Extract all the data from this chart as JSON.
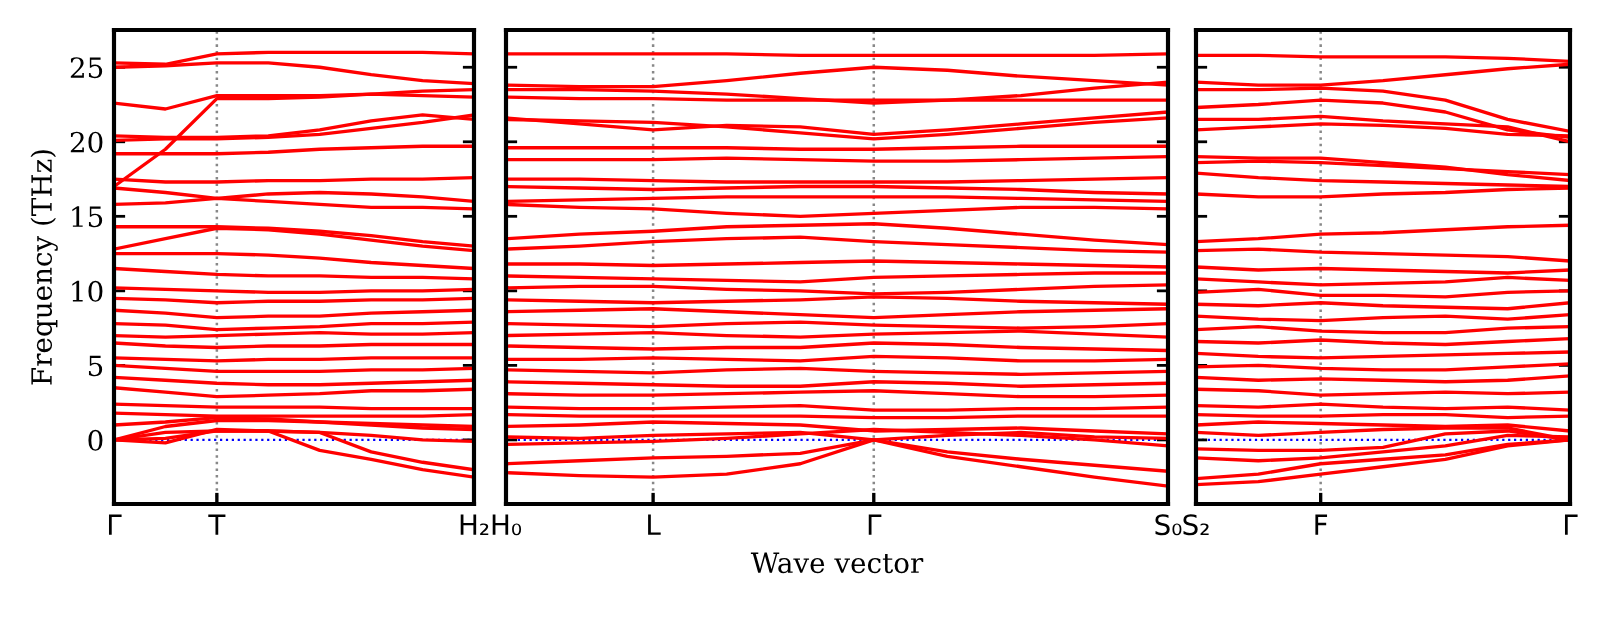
{
  "chart_data": [
    {
      "type": "line",
      "ylabel": "Frequency (THz)",
      "categories": [
        "Γ",
        null,
        "T",
        null,
        null,
        null,
        null,
        "H₂"
      ],
      "ylim": [
        -4.3,
        27.5
      ],
      "yticks": [
        0,
        5,
        10,
        15,
        20,
        25
      ],
      "ref_lines": [
        {
          "axis": "y",
          "value": 0,
          "color": "#0000ff",
          "line_style": "dotted"
        },
        {
          "axis": "x",
          "value": "T",
          "color": "#888888",
          "line_style": "dotted"
        }
      ],
      "series": [
        {
          "color": "#ff0000",
          "values": [
            25.3,
            25.2,
            25.9,
            26.0,
            26.0,
            26.0,
            26.0,
            25.9
          ]
        },
        {
          "color": "#ff0000",
          "values": [
            25.0,
            25.1,
            25.3,
            25.3,
            25.0,
            24.5,
            24.1,
            23.9
          ]
        },
        {
          "color": "#ff0000",
          "values": [
            22.6,
            22.2,
            23.1,
            23.1,
            23.1,
            23.2,
            23.1,
            23.0
          ]
        },
        {
          "color": "#ff0000",
          "values": [
            17.0,
            19.5,
            22.9,
            22.9,
            23.0,
            23.2,
            23.4,
            23.5
          ]
        },
        {
          "color": "#ff0000",
          "values": [
            20.4,
            20.3,
            20.3,
            20.4,
            20.8,
            21.4,
            21.8,
            21.5
          ]
        },
        {
          "color": "#ff0000",
          "values": [
            20.1,
            20.2,
            20.2,
            20.3,
            20.5,
            20.9,
            21.3,
            21.8
          ]
        },
        {
          "color": "#ff0000",
          "values": [
            19.2,
            19.2,
            19.2,
            19.3,
            19.5,
            19.6,
            19.7,
            19.7
          ]
        },
        {
          "color": "#ff0000",
          "values": [
            17.5,
            17.3,
            17.3,
            17.4,
            17.4,
            17.5,
            17.5,
            17.6
          ]
        },
        {
          "color": "#ff0000",
          "values": [
            16.9,
            16.6,
            16.2,
            16.5,
            16.6,
            16.5,
            16.3,
            16.0
          ]
        },
        {
          "color": "#ff0000",
          "values": [
            15.8,
            15.9,
            16.2,
            16.0,
            15.8,
            15.6,
            15.6,
            15.5
          ]
        },
        {
          "color": "#ff0000",
          "values": [
            14.3,
            14.3,
            14.3,
            14.2,
            14.0,
            13.7,
            13.3,
            13.0
          ]
        },
        {
          "color": "#ff0000",
          "values": [
            12.8,
            13.5,
            14.2,
            14.1,
            13.8,
            13.4,
            13.0,
            12.7
          ]
        },
        {
          "color": "#ff0000",
          "values": [
            12.5,
            12.5,
            12.5,
            12.4,
            12.2,
            11.9,
            11.7,
            11.5
          ]
        },
        {
          "color": "#ff0000",
          "values": [
            11.5,
            11.3,
            11.1,
            11.0,
            11.0,
            10.9,
            10.9,
            10.8
          ]
        },
        {
          "color": "#ff0000",
          "values": [
            10.2,
            10.1,
            10.0,
            9.9,
            9.9,
            10.0,
            10.0,
            10.1
          ]
        },
        {
          "color": "#ff0000",
          "values": [
            9.5,
            9.4,
            9.2,
            9.3,
            9.3,
            9.4,
            9.4,
            9.5
          ]
        },
        {
          "color": "#ff0000",
          "values": [
            8.7,
            8.5,
            8.2,
            8.3,
            8.3,
            8.5,
            8.6,
            8.7
          ]
        },
        {
          "color": "#ff0000",
          "values": [
            7.8,
            7.7,
            7.4,
            7.5,
            7.6,
            7.8,
            7.8,
            7.9
          ]
        },
        {
          "color": "#ff0000",
          "values": [
            7.0,
            6.9,
            7.0,
            7.1,
            7.2,
            7.1,
            7.1,
            7.2
          ]
        },
        {
          "color": "#ff0000",
          "values": [
            6.5,
            6.3,
            6.2,
            6.3,
            6.3,
            6.4,
            6.4,
            6.4
          ]
        },
        {
          "color": "#ff0000",
          "values": [
            5.5,
            5.4,
            5.3,
            5.4,
            5.4,
            5.5,
            5.5,
            5.5
          ]
        },
        {
          "color": "#ff0000",
          "values": [
            5.0,
            4.8,
            4.6,
            4.6,
            4.6,
            4.7,
            4.7,
            4.8
          ]
        },
        {
          "color": "#ff0000",
          "values": [
            4.2,
            4.0,
            3.8,
            3.7,
            3.7,
            3.8,
            3.9,
            4.0
          ]
        },
        {
          "color": "#ff0000",
          "values": [
            3.5,
            3.2,
            2.9,
            3.0,
            3.1,
            3.3,
            3.3,
            3.4
          ]
        },
        {
          "color": "#ff0000",
          "values": [
            2.4,
            2.3,
            2.2,
            2.2,
            2.2,
            2.1,
            2.1,
            2.1
          ]
        },
        {
          "color": "#ff0000",
          "values": [
            1.8,
            1.7,
            1.6,
            1.6,
            1.6,
            1.6,
            1.6,
            1.7
          ]
        },
        {
          "color": "#ff0000",
          "values": [
            1.0,
            1.2,
            1.5,
            1.4,
            1.2,
            1.0,
            0.8,
            0.7
          ]
        },
        {
          "color": "#ff0000",
          "values": [
            0,
            0.9,
            1.3,
            1.3,
            1.2,
            1.1,
            1.0,
            0.9
          ]
        },
        {
          "color": "#ff0000",
          "values": [
            0,
            -0.2,
            0.7,
            0.6,
            -0.7,
            -1.3,
            -2.0,
            -2.5
          ]
        },
        {
          "color": "#ff0000",
          "values": [
            0,
            0.1,
            0.6,
            0.6,
            0.5,
            -0.8,
            -1.5,
            -2.0
          ]
        },
        {
          "color": "#ff0000",
          "values": [
            0,
            0.5,
            0.6,
            0.6,
            0.5,
            0.3,
            0.0,
            -0.1
          ]
        }
      ]
    },
    {
      "type": "line",
      "xlabel": "Wave vector",
      "categories": [
        "H₀",
        null,
        "L",
        null,
        null,
        "Γ",
        null,
        null,
        null,
        "S₀"
      ],
      "ylim": [
        -4.3,
        27.5
      ],
      "yticks": [
        0,
        5,
        10,
        15,
        20,
        25
      ],
      "tick_labels": "x",
      "grid": "x",
      "ref_lines": [
        {
          "axis": "y",
          "value": 0,
          "color": "#0000ff",
          "line_style": "dotted"
        }
      ],
      "series": [
        {
          "color": "#ff0000",
          "values": [
            25.9,
            25.9,
            25.9,
            25.9,
            25.8,
            25.8,
            25.8,
            25.8,
            25.8,
            25.9
          ]
        },
        {
          "color": "#ff0000",
          "values": [
            23.8,
            23.7,
            23.7,
            24.1,
            24.6,
            25.0,
            24.8,
            24.4,
            24.1,
            23.8
          ]
        },
        {
          "color": "#ff0000",
          "values": [
            23.5,
            23.5,
            23.4,
            23.2,
            22.9,
            22.6,
            22.8,
            23.1,
            23.6,
            24.0
          ]
        },
        {
          "color": "#ff0000",
          "values": [
            23.0,
            22.9,
            22.9,
            22.8,
            22.8,
            22.8,
            22.8,
            22.8,
            22.8,
            22.8
          ]
        },
        {
          "color": "#ff0000",
          "values": [
            21.6,
            21.2,
            20.8,
            21.1,
            21.0,
            20.5,
            20.8,
            21.2,
            21.6,
            22.0
          ]
        },
        {
          "color": "#ff0000",
          "values": [
            21.5,
            21.4,
            21.3,
            21.0,
            20.6,
            20.2,
            20.5,
            20.9,
            21.3,
            21.6
          ]
        },
        {
          "color": "#ff0000",
          "values": [
            19.6,
            19.6,
            19.6,
            19.6,
            19.5,
            19.5,
            19.6,
            19.7,
            19.7,
            19.7
          ]
        },
        {
          "color": "#ff0000",
          "values": [
            18.8,
            18.8,
            18.8,
            18.9,
            18.8,
            18.7,
            18.7,
            18.8,
            18.9,
            19.0
          ]
        },
        {
          "color": "#ff0000",
          "values": [
            17.5,
            17.5,
            17.4,
            17.3,
            17.3,
            17.3,
            17.3,
            17.4,
            17.5,
            17.6
          ]
        },
        {
          "color": "#ff0000",
          "values": [
            17.0,
            16.9,
            16.8,
            16.9,
            17.0,
            17.0,
            16.9,
            16.8,
            16.6,
            16.5
          ]
        },
        {
          "color": "#ff0000",
          "values": [
            16.0,
            16.1,
            16.2,
            16.3,
            16.3,
            16.3,
            16.3,
            16.2,
            16.1,
            16.0
          ]
        },
        {
          "color": "#ff0000",
          "values": [
            15.8,
            15.6,
            15.5,
            15.2,
            15.0,
            15.2,
            15.4,
            15.6,
            15.6,
            15.5
          ]
        },
        {
          "color": "#ff0000",
          "values": [
            13.5,
            13.8,
            14.0,
            14.3,
            14.4,
            14.5,
            14.2,
            13.8,
            13.4,
            13.1
          ]
        },
        {
          "color": "#ff0000",
          "values": [
            12.8,
            13.0,
            13.3,
            13.5,
            13.6,
            13.3,
            13.1,
            12.9,
            12.7,
            12.6
          ]
        },
        {
          "color": "#ff0000",
          "values": [
            11.8,
            11.8,
            11.7,
            11.8,
            11.9,
            12.0,
            11.9,
            11.8,
            11.7,
            11.6
          ]
        },
        {
          "color": "#ff0000",
          "values": [
            11.0,
            10.9,
            10.8,
            10.7,
            10.6,
            10.9,
            11.0,
            11.1,
            11.2,
            11.2
          ]
        },
        {
          "color": "#ff0000",
          "values": [
            10.2,
            10.3,
            10.3,
            10.1,
            10.0,
            9.8,
            9.9,
            10.1,
            10.3,
            10.4
          ]
        },
        {
          "color": "#ff0000",
          "values": [
            9.4,
            9.3,
            9.2,
            9.3,
            9.4,
            9.6,
            9.5,
            9.3,
            9.2,
            9.1
          ]
        },
        {
          "color": "#ff0000",
          "values": [
            8.6,
            8.7,
            8.8,
            8.6,
            8.4,
            8.2,
            8.4,
            8.6,
            8.7,
            8.8
          ]
        },
        {
          "color": "#ff0000",
          "values": [
            7.8,
            7.7,
            7.6,
            7.8,
            7.9,
            7.7,
            7.6,
            7.5,
            7.6,
            7.8
          ]
        },
        {
          "color": "#ff0000",
          "values": [
            7.0,
            7.1,
            7.2,
            7.0,
            6.9,
            7.1,
            7.2,
            7.3,
            7.1,
            6.9
          ]
        },
        {
          "color": "#ff0000",
          "values": [
            6.3,
            6.2,
            6.1,
            6.2,
            6.2,
            6.5,
            6.4,
            6.2,
            6.1,
            6.0
          ]
        },
        {
          "color": "#ff0000",
          "values": [
            5.4,
            5.4,
            5.5,
            5.4,
            5.3,
            5.6,
            5.5,
            5.3,
            5.3,
            5.4
          ]
        },
        {
          "color": "#ff0000",
          "values": [
            4.7,
            4.6,
            4.5,
            4.7,
            4.8,
            4.6,
            4.5,
            4.4,
            4.5,
            4.6
          ]
        },
        {
          "color": "#ff0000",
          "values": [
            3.9,
            3.8,
            3.7,
            3.6,
            3.6,
            3.9,
            3.8,
            3.6,
            3.7,
            3.8
          ]
        },
        {
          "color": "#ff0000",
          "values": [
            3.1,
            3.0,
            3.0,
            3.1,
            3.2,
            3.3,
            3.1,
            2.9,
            2.9,
            3.0
          ]
        },
        {
          "color": "#ff0000",
          "values": [
            2.2,
            2.1,
            2.1,
            2.2,
            2.3,
            2.0,
            2.0,
            2.1,
            2.1,
            2.2
          ]
        },
        {
          "color": "#ff0000",
          "values": [
            1.7,
            1.6,
            1.6,
            1.6,
            1.6,
            1.5,
            1.5,
            1.6,
            1.6,
            1.6
          ]
        },
        {
          "color": "#ff0000",
          "values": [
            0.9,
            1.0,
            1.2,
            1.1,
            1.0,
            0.6,
            0.7,
            0.8,
            0.6,
            0.4
          ]
        },
        {
          "color": "#ff0000",
          "values": [
            0.2,
            0.1,
            0.3,
            0.4,
            0.5,
            0,
            0.3,
            0.5,
            0.2,
            0.1
          ]
        },
        {
          "color": "#ff0000",
          "values": [
            -0.3,
            -0.2,
            -0.1,
            0.1,
            0.4,
            0.7,
            0.5,
            0.3,
            0.0,
            -0.4
          ]
        },
        {
          "color": "#ff0000",
          "values": [
            -1.6,
            -1.4,
            -1.2,
            -1.1,
            -0.9,
            0,
            -0.8,
            -1.3,
            -1.7,
            -2.1
          ]
        },
        {
          "color": "#ff0000",
          "values": [
            -2.2,
            -2.4,
            -2.5,
            -2.3,
            -1.6,
            0,
            -1.1,
            -1.8,
            -2.5,
            -3.1
          ]
        }
      ]
    },
    {
      "type": "line",
      "categories": [
        "S₂",
        null,
        "F",
        null,
        null,
        null,
        "Γ"
      ],
      "ylim": [
        -4.3,
        27.5
      ],
      "yticks": [
        0,
        5,
        10,
        15,
        20,
        25
      ],
      "tick_labels": "x",
      "ref_lines": [
        {
          "axis": "y",
          "value": 0,
          "color": "#0000ff",
          "line_style": "dotted"
        },
        {
          "axis": "x",
          "value": "F",
          "color": "#888888",
          "line_style": "dotted"
        }
      ],
      "series": [
        {
          "color": "#ff0000",
          "values": [
            25.8,
            25.8,
            25.7,
            25.7,
            25.7,
            25.6,
            25.4
          ]
        },
        {
          "color": "#ff0000",
          "values": [
            24.0,
            23.8,
            23.8,
            24.1,
            24.5,
            24.9,
            25.2
          ]
        },
        {
          "color": "#ff0000",
          "values": [
            23.5,
            23.5,
            23.6,
            23.4,
            22.8,
            21.5,
            20.7
          ]
        },
        {
          "color": "#ff0000",
          "values": [
            22.3,
            22.5,
            22.8,
            22.6,
            22.0,
            20.8,
            20.3
          ]
        },
        {
          "color": "#ff0000",
          "values": [
            21.5,
            21.5,
            21.7,
            21.4,
            21.2,
            21.0,
            20.0
          ]
        },
        {
          "color": "#ff0000",
          "values": [
            20.8,
            21.0,
            21.2,
            21.1,
            20.9,
            20.5,
            20.4
          ]
        },
        {
          "color": "#ff0000",
          "values": [
            19.0,
            18.9,
            18.9,
            18.6,
            18.3,
            17.8,
            17.4
          ]
        },
        {
          "color": "#ff0000",
          "values": [
            18.6,
            18.7,
            18.6,
            18.4,
            18.2,
            18.0,
            17.8
          ]
        },
        {
          "color": "#ff0000",
          "values": [
            17.9,
            17.6,
            17.4,
            17.3,
            17.2,
            17.1,
            17.0
          ]
        },
        {
          "color": "#ff0000",
          "values": [
            16.5,
            16.3,
            16.3,
            16.5,
            16.6,
            16.8,
            16.9
          ]
        },
        {
          "color": "#ff0000",
          "values": [
            13.3,
            13.5,
            13.8,
            13.9,
            14.1,
            14.3,
            14.4
          ]
        },
        {
          "color": "#ff0000",
          "values": [
            12.7,
            12.8,
            12.6,
            12.5,
            12.4,
            12.3,
            12.0
          ]
        },
        {
          "color": "#ff0000",
          "values": [
            11.6,
            11.4,
            11.5,
            11.4,
            11.3,
            11.2,
            11.4
          ]
        },
        {
          "color": "#ff0000",
          "values": [
            10.8,
            10.6,
            10.4,
            10.5,
            10.6,
            10.9,
            10.7
          ]
        },
        {
          "color": "#ff0000",
          "values": [
            9.9,
            10.1,
            9.7,
            9.7,
            9.6,
            9.9,
            10.0
          ]
        },
        {
          "color": "#ff0000",
          "values": [
            9.1,
            9.0,
            9.2,
            9.0,
            8.9,
            8.8,
            9.2
          ]
        },
        {
          "color": "#ff0000",
          "values": [
            8.3,
            8.1,
            8.0,
            8.2,
            8.3,
            8.1,
            8.4
          ]
        },
        {
          "color": "#ff0000",
          "values": [
            7.4,
            7.6,
            7.3,
            7.2,
            7.2,
            7.5,
            7.6
          ]
        },
        {
          "color": "#ff0000",
          "values": [
            6.6,
            6.5,
            6.7,
            6.5,
            6.4,
            6.6,
            6.8
          ]
        },
        {
          "color": "#ff0000",
          "values": [
            5.8,
            5.6,
            5.5,
            5.6,
            5.7,
            5.8,
            5.9
          ]
        },
        {
          "color": "#ff0000",
          "values": [
            4.9,
            5.0,
            4.8,
            4.7,
            4.7,
            4.9,
            5.1
          ]
        },
        {
          "color": "#ff0000",
          "values": [
            4.2,
            4.0,
            4.1,
            4.0,
            3.9,
            4.0,
            4.3
          ]
        },
        {
          "color": "#ff0000",
          "values": [
            3.4,
            3.3,
            3.0,
            3.1,
            3.2,
            3.1,
            3.2
          ]
        },
        {
          "color": "#ff0000",
          "values": [
            2.3,
            2.2,
            2.4,
            2.2,
            2.1,
            2.2,
            2.0
          ]
        },
        {
          "color": "#ff0000",
          "values": [
            1.7,
            1.6,
            1.6,
            1.7,
            1.7,
            1.5,
            1.6
          ]
        },
        {
          "color": "#ff0000",
          "values": [
            1.0,
            1.2,
            1.1,
            1.0,
            0.9,
            1.0,
            0.6
          ]
        },
        {
          "color": "#ff0000",
          "values": [
            0.5,
            0.3,
            0.5,
            0.7,
            0.8,
            0.8,
            0
          ]
        },
        {
          "color": "#ff0000",
          "values": [
            -0.6,
            -0.7,
            -0.7,
            -0.5,
            0.4,
            0.6,
            0
          ]
        },
        {
          "color": "#ff0000",
          "values": [
            -1.2,
            -1.4,
            -1.2,
            -0.8,
            -0.4,
            0.3,
            0.2
          ]
        },
        {
          "color": "#ff0000",
          "values": [
            -2.6,
            -2.3,
            -1.6,
            -1.3,
            -1.0,
            -0.3,
            0
          ]
        },
        {
          "color": "#ff0000",
          "values": [
            -3.0,
            -2.8,
            -2.3,
            -1.8,
            -1.3,
            -0.4,
            0
          ]
        }
      ]
    }
  ]
}
